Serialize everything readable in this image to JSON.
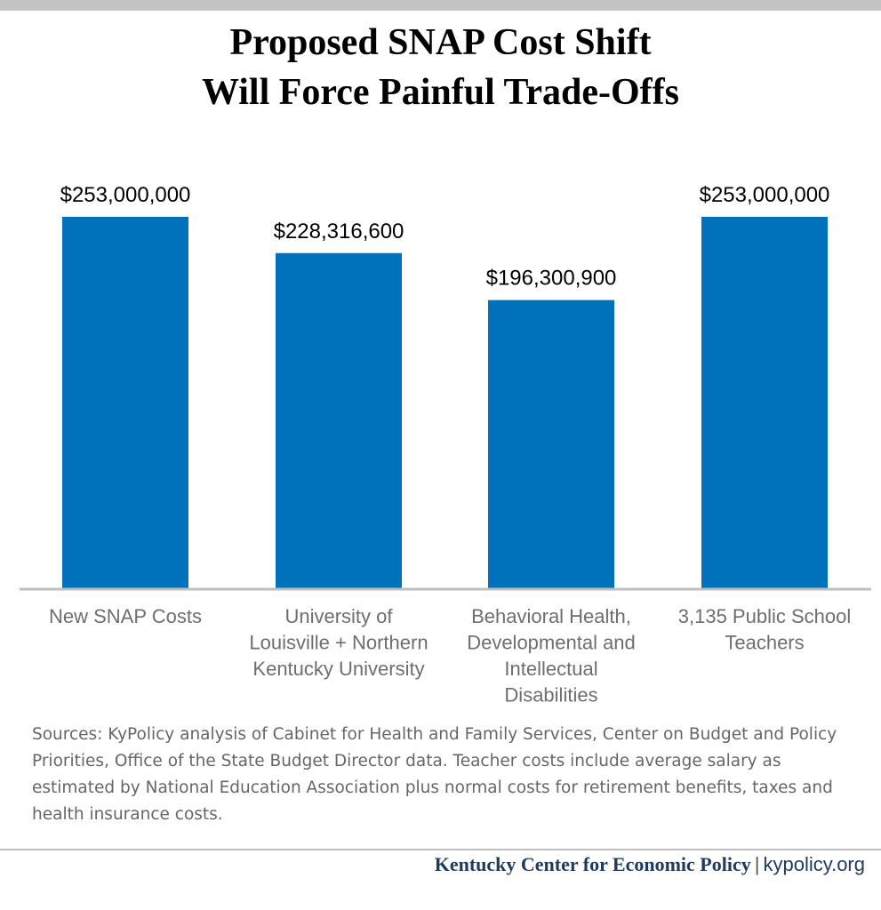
{
  "title": {
    "line1": "Proposed SNAP Cost Shift",
    "line2": "Will Force Painful Trade-Offs"
  },
  "chart_data": {
    "type": "bar",
    "title": "Proposed SNAP Cost Shift Will Force Painful Trade-Offs",
    "categories": [
      [
        "New SNAP Costs"
      ],
      [
        "University of",
        "Louisville + Northern",
        "Kentucky University"
      ],
      [
        "Behavioral Health,",
        "Developmental and",
        "Intellectual",
        "Disabilities"
      ],
      [
        "3,135 Public School",
        "Teachers"
      ]
    ],
    "values": [
      253000000,
      228316600,
      196300900,
      253000000
    ],
    "value_labels": [
      "$253,000,000",
      "$228,316,600",
      "$196,300,900",
      "$253,000,000"
    ],
    "ylim": [
      0,
      253000000
    ],
    "bar_color": "#0072bc",
    "xlabel": "",
    "ylabel": "",
    "grid": false,
    "legend": false
  },
  "source": "Sources: KyPolicy analysis of Cabinet for Health and Family Services, Center on Budget and Policy Priorities, Office of the State Budget Director data. Teacher costs include average salary as estimated by National Education Association plus normal costs for retirement benefits, taxes and health insurance costs.",
  "footer": {
    "org": "Kentucky Center for Economic Policy",
    "separator": "|",
    "site": "kypolicy.org"
  }
}
